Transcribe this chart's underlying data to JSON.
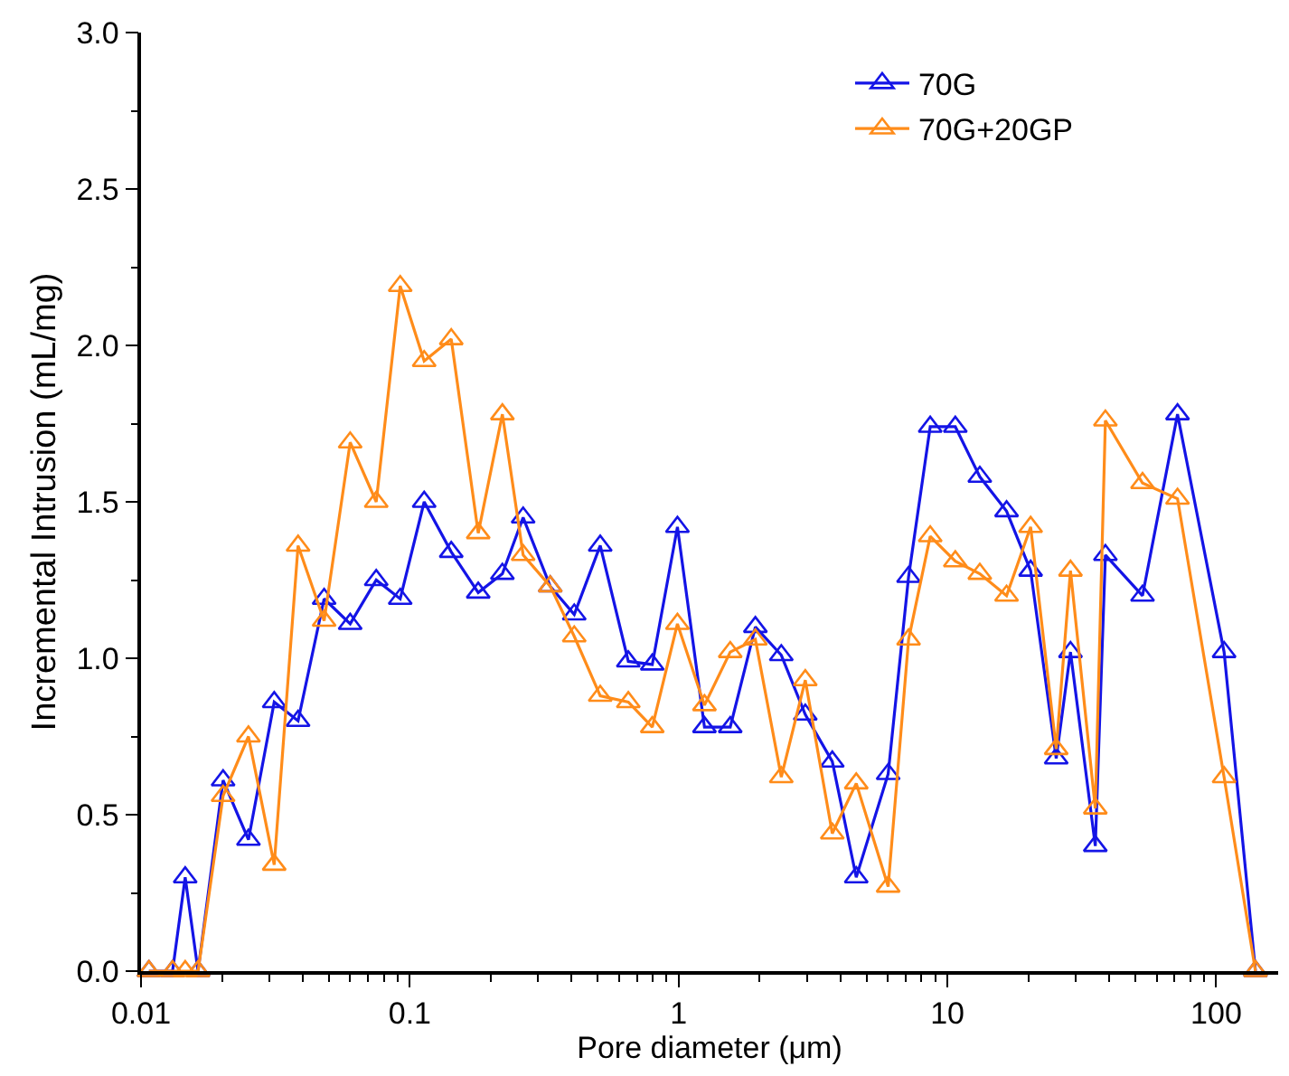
{
  "chart_data": {
    "type": "line",
    "xlabel": "Pore diameter (μm)",
    "ylabel": "Incremental Intrusion (mL/mg)",
    "x": [
      0.0107,
      0.0131,
      0.0146,
      0.0163,
      0.0202,
      0.0251,
      0.0313,
      0.0384,
      0.048,
      0.06,
      0.075,
      0.0921,
      0.1131,
      0.1426,
      0.1797,
      0.221,
      0.264,
      0.333,
      0.409,
      0.511,
      0.65,
      0.798,
      0.99,
      1.248,
      1.556,
      1.93,
      2.41,
      2.96,
      3.73,
      4.58,
      6.02,
      7.17,
      8.63,
      10.7,
      13.2,
      16.6,
      20.4,
      25.4,
      28.7,
      35.5,
      38.7,
      53.2,
      71.8,
      107,
      140
    ],
    "series": [
      {
        "name": "70G",
        "color": "#1414e6",
        "values": [
          0,
          0,
          0.3,
          0,
          0.61,
          0.42,
          0.86,
          0.8,
          1.19,
          1.11,
          1.25,
          1.19,
          1.5,
          1.34,
          1.21,
          1.27,
          1.45,
          1.23,
          1.14,
          1.36,
          0.99,
          0.98,
          1.42,
          0.78,
          0.78,
          1.1,
          1.01,
          0.82,
          0.67,
          0.3,
          0.63,
          1.26,
          1.74,
          1.74,
          1.58,
          1.47,
          1.28,
          0.68,
          1.02,
          0.4,
          1.33,
          1.2,
          1.78,
          1.02,
          0
        ]
      },
      {
        "name": "70G+20GP",
        "color": "#ff8c1a",
        "values": [
          0,
          0,
          0,
          0,
          0.56,
          0.75,
          0.34,
          1.36,
          1.12,
          1.69,
          1.5,
          2.19,
          1.95,
          2.02,
          1.4,
          1.78,
          1.33,
          1.23,
          1.07,
          0.88,
          0.86,
          0.78,
          1.11,
          0.85,
          1.02,
          1.06,
          0.62,
          0.93,
          0.44,
          0.6,
          0.27,
          1.06,
          1.39,
          1.31,
          1.27,
          1.2,
          1.42,
          0.71,
          1.28,
          0.52,
          1.76,
          1.56,
          1.51,
          0.62,
          0
        ]
      }
    ],
    "log": "x",
    "xlim": [
      0.01,
      170
    ],
    "xticks": [
      0.01,
      0.1,
      1,
      10,
      100
    ],
    "ylim": [
      0,
      3
    ],
    "yticks": [
      {
        "value": 0,
        "label": "0.0"
      },
      {
        "value": 0.5,
        "label": "0.5"
      },
      {
        "value": 1,
        "label": "1.0"
      },
      {
        "value": 1.5,
        "label": "1.5"
      },
      {
        "value": 2,
        "label": "2.0"
      },
      {
        "value": 2.5,
        "label": "2.5"
      },
      {
        "value": 3,
        "label": "3.0"
      }
    ],
    "legend": "top right",
    "marker": "triangle",
    "line_style": "solid"
  }
}
